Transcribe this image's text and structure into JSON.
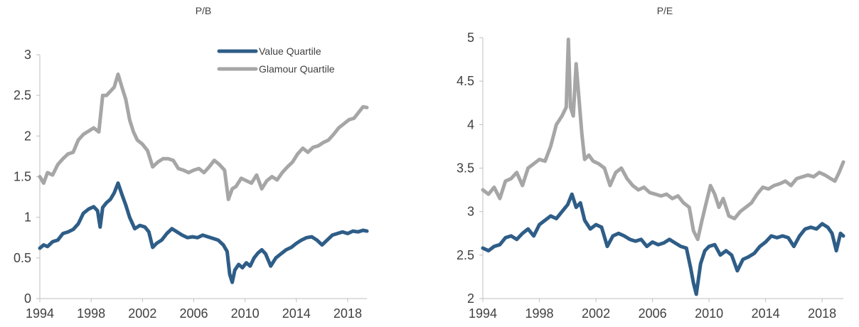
{
  "chart_data": [
    {
      "type": "line",
      "title": "P/B",
      "xlabel": "",
      "ylabel": "",
      "xlim": [
        1994,
        2019.5
      ],
      "ylim": [
        0,
        3
      ],
      "xticks": [
        "1994",
        "1998",
        "2002",
        "2006",
        "2010",
        "2014",
        "2018"
      ],
      "yticks": [
        "0",
        "0.5",
        "1",
        "1.5",
        "2",
        "2.5",
        "3"
      ],
      "grid": false,
      "legend": "top-right",
      "series": [
        {
          "name": "Value Quartile",
          "color": "#2e5d87",
          "x": [
            1994.0,
            1994.3,
            1994.6,
            1995.0,
            1995.4,
            1995.8,
            1996.2,
            1996.6,
            1997.0,
            1997.4,
            1997.8,
            1998.2,
            1998.5,
            1998.7,
            1998.9,
            1999.2,
            1999.5,
            1999.8,
            2000.1,
            2000.4,
            2000.7,
            2001.0,
            2001.4,
            2001.8,
            2002.2,
            2002.5,
            2002.8,
            2003.1,
            2003.5,
            2003.9,
            2004.3,
            2004.7,
            2005.1,
            2005.5,
            2005.9,
            2006.3,
            2006.7,
            2007.1,
            2007.5,
            2007.9,
            2008.3,
            2008.6,
            2008.8,
            2009.0,
            2009.2,
            2009.5,
            2009.8,
            2010.1,
            2010.4,
            2010.7,
            2011.0,
            2011.3,
            2011.6,
            2012.0,
            2012.4,
            2012.8,
            2013.2,
            2013.6,
            2014.0,
            2014.4,
            2014.8,
            2015.2,
            2015.6,
            2016.0,
            2016.4,
            2016.8,
            2017.2,
            2017.6,
            2018.0,
            2018.4,
            2018.8,
            2019.2,
            2019.5
          ],
          "values": [
            0.62,
            0.66,
            0.64,
            0.7,
            0.72,
            0.8,
            0.82,
            0.85,
            0.92,
            1.05,
            1.1,
            1.13,
            1.08,
            0.88,
            1.12,
            1.18,
            1.22,
            1.3,
            1.42,
            1.28,
            1.15,
            1.0,
            0.86,
            0.9,
            0.88,
            0.82,
            0.63,
            0.68,
            0.72,
            0.8,
            0.86,
            0.82,
            0.78,
            0.75,
            0.76,
            0.75,
            0.78,
            0.76,
            0.74,
            0.72,
            0.66,
            0.58,
            0.3,
            0.2,
            0.35,
            0.42,
            0.38,
            0.44,
            0.4,
            0.5,
            0.56,
            0.6,
            0.55,
            0.4,
            0.5,
            0.55,
            0.6,
            0.63,
            0.68,
            0.72,
            0.75,
            0.76,
            0.72,
            0.66,
            0.72,
            0.78,
            0.8,
            0.82,
            0.8,
            0.83,
            0.82,
            0.84,
            0.83
          ]
        },
        {
          "name": "Glamour Quartile",
          "color": "#a6a6a6",
          "x": [
            1994.0,
            1994.3,
            1994.6,
            1995.0,
            1995.4,
            1995.8,
            1996.2,
            1996.6,
            1997.0,
            1997.4,
            1997.8,
            1998.2,
            1998.6,
            1998.9,
            1999.2,
            1999.5,
            1999.8,
            2000.1,
            2000.4,
            2000.7,
            2001.0,
            2001.3,
            2001.6,
            2002.0,
            2002.4,
            2002.8,
            2003.2,
            2003.6,
            2004.0,
            2004.4,
            2004.8,
            2005.2,
            2005.6,
            2006.0,
            2006.4,
            2006.8,
            2007.2,
            2007.6,
            2008.0,
            2008.4,
            2008.7,
            2009.0,
            2009.3,
            2009.7,
            2010.1,
            2010.5,
            2010.9,
            2011.3,
            2011.7,
            2012.1,
            2012.5,
            2012.9,
            2013.3,
            2013.7,
            2014.1,
            2014.5,
            2014.9,
            2015.3,
            2015.7,
            2016.1,
            2016.5,
            2016.9,
            2017.3,
            2017.7,
            2018.1,
            2018.5,
            2018.9,
            2019.2,
            2019.5
          ],
          "values": [
            1.5,
            1.42,
            1.55,
            1.52,
            1.65,
            1.72,
            1.78,
            1.8,
            1.95,
            2.02,
            2.06,
            2.1,
            2.05,
            2.5,
            2.5,
            2.55,
            2.6,
            2.76,
            2.6,
            2.45,
            2.2,
            2.05,
            1.95,
            1.9,
            1.82,
            1.62,
            1.68,
            1.72,
            1.72,
            1.7,
            1.6,
            1.58,
            1.55,
            1.58,
            1.6,
            1.55,
            1.62,
            1.7,
            1.65,
            1.58,
            1.22,
            1.35,
            1.38,
            1.48,
            1.45,
            1.42,
            1.52,
            1.35,
            1.45,
            1.5,
            1.46,
            1.55,
            1.62,
            1.68,
            1.78,
            1.85,
            1.8,
            1.86,
            1.88,
            1.92,
            1.95,
            2.02,
            2.1,
            2.15,
            2.2,
            2.22,
            2.3,
            2.36,
            2.35
          ]
        }
      ]
    },
    {
      "type": "line",
      "title": "P/E",
      "xlabel": "",
      "ylabel": "",
      "xlim": [
        1994,
        2019.5
      ],
      "ylim": [
        2,
        5
      ],
      "xticks": [
        "1994",
        "1998",
        "2002",
        "2006",
        "2010",
        "2014",
        "2018"
      ],
      "yticks": [
        "2",
        "2.5",
        "3",
        "3.5",
        "4",
        "4.5",
        "5"
      ],
      "grid": false,
      "legend": "none",
      "series": [
        {
          "name": "Value Quartile",
          "color": "#2e5d87",
          "x": [
            1994.0,
            1994.4,
            1994.8,
            1995.2,
            1995.6,
            1996.0,
            1996.4,
            1996.8,
            1997.2,
            1997.6,
            1998.0,
            1998.4,
            1998.8,
            1999.2,
            1999.6,
            2000.0,
            2000.3,
            2000.6,
            2000.9,
            2001.2,
            2001.6,
            2002.0,
            2002.4,
            2002.8,
            2003.2,
            2003.6,
            2004.0,
            2004.4,
            2004.8,
            2005.2,
            2005.6,
            2006.0,
            2006.4,
            2006.8,
            2007.2,
            2007.6,
            2008.0,
            2008.4,
            2008.7,
            2008.9,
            2009.1,
            2009.4,
            2009.7,
            2010.0,
            2010.4,
            2010.8,
            2011.2,
            2011.6,
            2012.0,
            2012.4,
            2012.8,
            2013.2,
            2013.6,
            2014.0,
            2014.4,
            2014.8,
            2015.2,
            2015.6,
            2016.0,
            2016.4,
            2016.8,
            2017.2,
            2017.6,
            2018.0,
            2018.4,
            2018.7,
            2019.0,
            2019.3,
            2019.5
          ],
          "values": [
            2.58,
            2.55,
            2.6,
            2.62,
            2.7,
            2.72,
            2.68,
            2.75,
            2.8,
            2.72,
            2.85,
            2.9,
            2.95,
            2.92,
            3.0,
            3.08,
            3.2,
            3.05,
            3.1,
            2.9,
            2.8,
            2.85,
            2.82,
            2.6,
            2.72,
            2.75,
            2.72,
            2.68,
            2.66,
            2.68,
            2.6,
            2.65,
            2.62,
            2.64,
            2.68,
            2.64,
            2.6,
            2.58,
            2.35,
            2.18,
            2.05,
            2.4,
            2.55,
            2.6,
            2.62,
            2.5,
            2.55,
            2.5,
            2.32,
            2.45,
            2.48,
            2.52,
            2.6,
            2.65,
            2.72,
            2.7,
            2.72,
            2.7,
            2.6,
            2.72,
            2.8,
            2.82,
            2.8,
            2.86,
            2.82,
            2.75,
            2.55,
            2.75,
            2.72
          ]
        },
        {
          "name": "Glamour Quartile",
          "color": "#a6a6a6",
          "x": [
            1994.0,
            1994.4,
            1994.8,
            1995.2,
            1995.6,
            1996.0,
            1996.4,
            1996.8,
            1997.2,
            1997.6,
            1998.0,
            1998.4,
            1998.8,
            1999.2,
            1999.6,
            1999.9,
            2000.05,
            2000.2,
            2000.4,
            2000.6,
            2000.8,
            2001.0,
            2001.2,
            2001.5,
            2001.8,
            2002.2,
            2002.6,
            2003.0,
            2003.4,
            2003.8,
            2004.2,
            2004.6,
            2005.0,
            2005.4,
            2005.8,
            2006.2,
            2006.6,
            2007.0,
            2007.4,
            2007.8,
            2008.2,
            2008.6,
            2008.9,
            2009.2,
            2009.5,
            2009.8,
            2010.1,
            2010.4,
            2010.7,
            2011.0,
            2011.4,
            2011.8,
            2012.2,
            2012.6,
            2013.0,
            2013.4,
            2013.8,
            2014.2,
            2014.6,
            2015.0,
            2015.4,
            2015.8,
            2016.2,
            2016.6,
            2017.0,
            2017.4,
            2017.8,
            2018.2,
            2018.6,
            2018.9,
            2019.2,
            2019.5
          ],
          "values": [
            3.25,
            3.2,
            3.28,
            3.15,
            3.35,
            3.38,
            3.45,
            3.3,
            3.5,
            3.55,
            3.6,
            3.58,
            3.75,
            4.0,
            4.1,
            4.2,
            4.98,
            4.2,
            4.1,
            4.7,
            4.3,
            3.9,
            3.6,
            3.65,
            3.58,
            3.55,
            3.5,
            3.3,
            3.45,
            3.5,
            3.38,
            3.3,
            3.25,
            3.28,
            3.22,
            3.2,
            3.18,
            3.2,
            3.15,
            3.18,
            3.1,
            3.05,
            2.78,
            2.68,
            2.9,
            3.1,
            3.3,
            3.2,
            3.05,
            3.15,
            2.95,
            2.92,
            3.0,
            3.05,
            3.1,
            3.2,
            3.28,
            3.26,
            3.3,
            3.32,
            3.35,
            3.3,
            3.38,
            3.4,
            3.42,
            3.4,
            3.45,
            3.42,
            3.38,
            3.35,
            3.45,
            3.57
          ]
        }
      ]
    }
  ]
}
